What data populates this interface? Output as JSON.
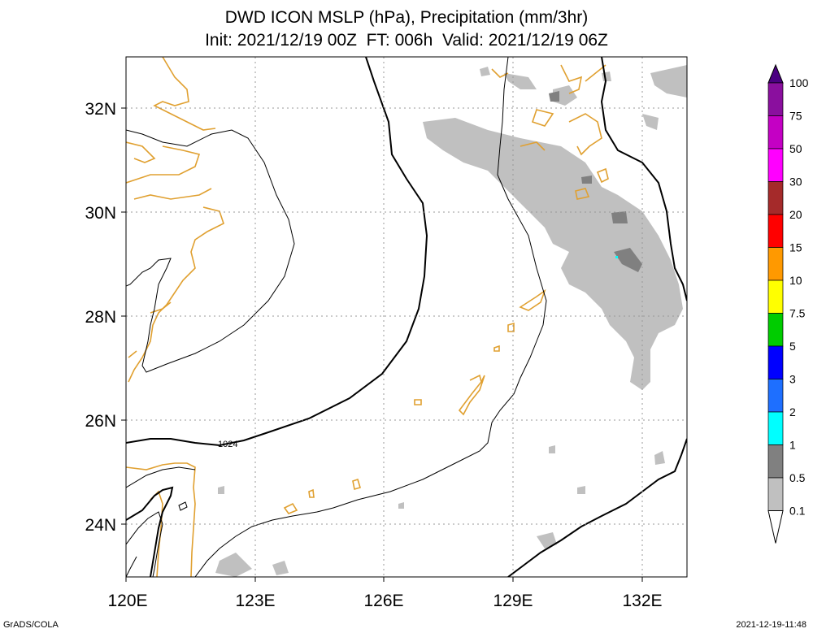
{
  "title": {
    "line1": "DWD ICON MSLP (hPa), Precipitation (mm/3hr)",
    "line2": "Init: 2021/12/19 00Z  FT: 006h  Valid: 2021/12/19 06Z"
  },
  "map": {
    "lon_range": [
      120,
      133
    ],
    "lat_range": [
      23,
      33
    ],
    "x_ticks": [
      "120E",
      "123E",
      "126E",
      "129E",
      "132E"
    ],
    "y_ticks": [
      "32N",
      "30N",
      "28N",
      "26N",
      "24N"
    ],
    "isobar_label": "1024"
  },
  "colorbar": {
    "levels": [
      "100",
      "75",
      "50",
      "30",
      "20",
      "15",
      "10",
      "7.5",
      "5",
      "3",
      "2",
      "1",
      "0.5",
      "0.1"
    ],
    "colors": [
      "#8a0f9e",
      "#c400c4",
      "#ff00ff",
      "#a52a2a",
      "#ff0000",
      "#ff9900",
      "#ffff00",
      "#00cc00",
      "#0000ff",
      "#1e6fff",
      "#00ffff",
      "#808080",
      "#c0c0c0"
    ],
    "top_color": "#4b0082"
  },
  "footer": {
    "left": "GrADS/COLA",
    "right": "2021-12-19-11:48"
  }
}
